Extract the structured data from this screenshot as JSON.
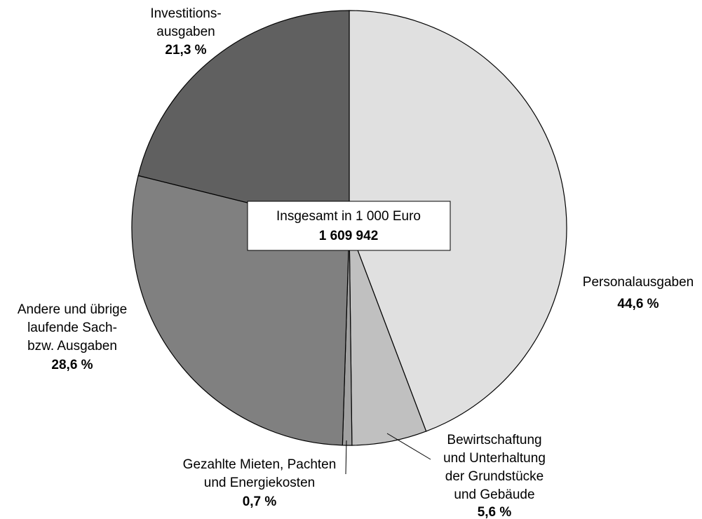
{
  "chart_data": {
    "type": "pie",
    "categories": [
      [
        "Personalausgaben"
      ],
      [
        "Bewirtschaftung",
        "und Unterhaltung",
        "der Grundstücke",
        "und Gebäude"
      ],
      [
        "Gezahlte Mieten, Pachten",
        "und Energiekosten"
      ],
      [
        "Andere und übrige",
        "laufende Sach-",
        "bzw. Ausgaben"
      ],
      [
        "Investitions-",
        "ausgaben"
      ]
    ],
    "values": [
      44.6,
      5.6,
      0.7,
      28.6,
      21.3
    ],
    "value_labels": [
      "44,6 %",
      "5,6 %",
      "0,7 %",
      "28,6 %",
      "21,3 %"
    ],
    "colors": [
      "#e0e0e0",
      "#c0c0c0",
      "#a0a0a0",
      "#808080",
      "#606060"
    ],
    "annotation": [
      "Insgesamt in 1 000 Euro",
      "1 609 942"
    ]
  }
}
